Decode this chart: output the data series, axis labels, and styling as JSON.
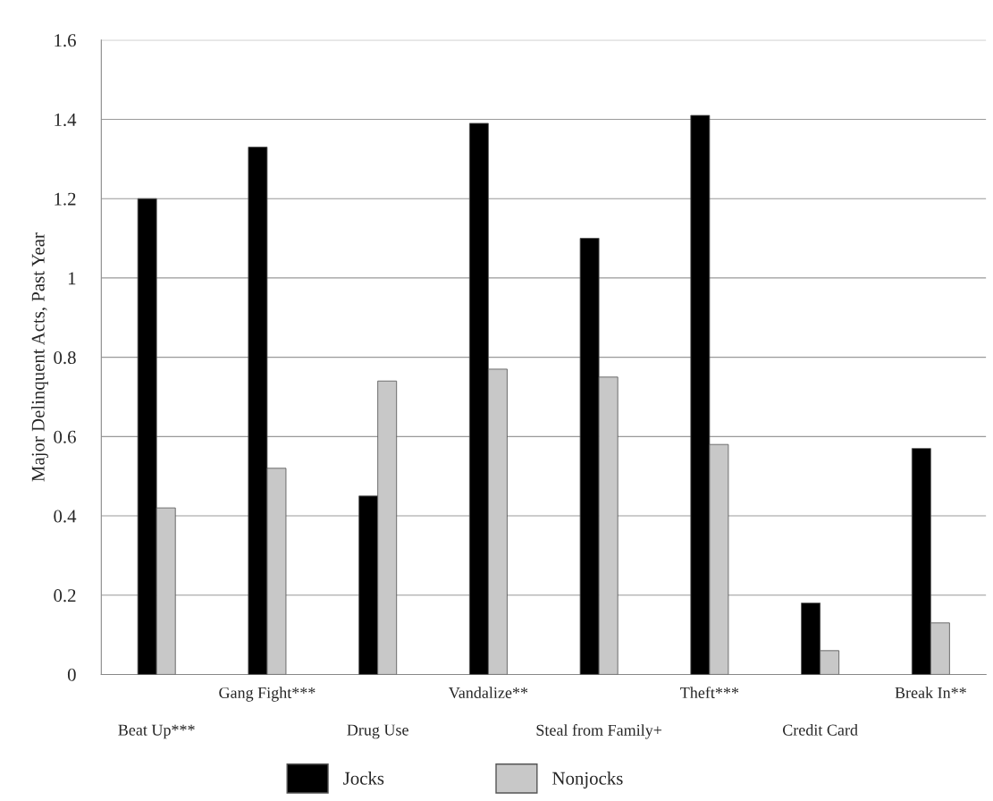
{
  "chart_data": {
    "type": "bar",
    "ylabel": "Major Delinquent Acts, Past Year",
    "categories": [
      "Beat Up***",
      "Gang Fight***",
      "Drug Use",
      "Vandalize**",
      "Steal from Family+",
      "Theft***",
      "Credit Card",
      "Break In**"
    ],
    "series": [
      {
        "name": "Jocks",
        "color": "#000000",
        "values": [
          1.2,
          1.33,
          0.45,
          1.39,
          1.1,
          1.41,
          0.18,
          0.57
        ]
      },
      {
        "name": "Nonjocks",
        "color": "#c8c8c8",
        "values": [
          0.42,
          0.52,
          0.74,
          0.77,
          0.75,
          0.58,
          0.06,
          0.13
        ]
      }
    ],
    "ylim": [
      0,
      1.6
    ],
    "yticks": [
      0,
      0.2,
      0.4,
      0.6,
      0.8,
      1,
      1.2,
      1.4,
      1.6
    ],
    "grid": "y",
    "legend": "bottom"
  }
}
